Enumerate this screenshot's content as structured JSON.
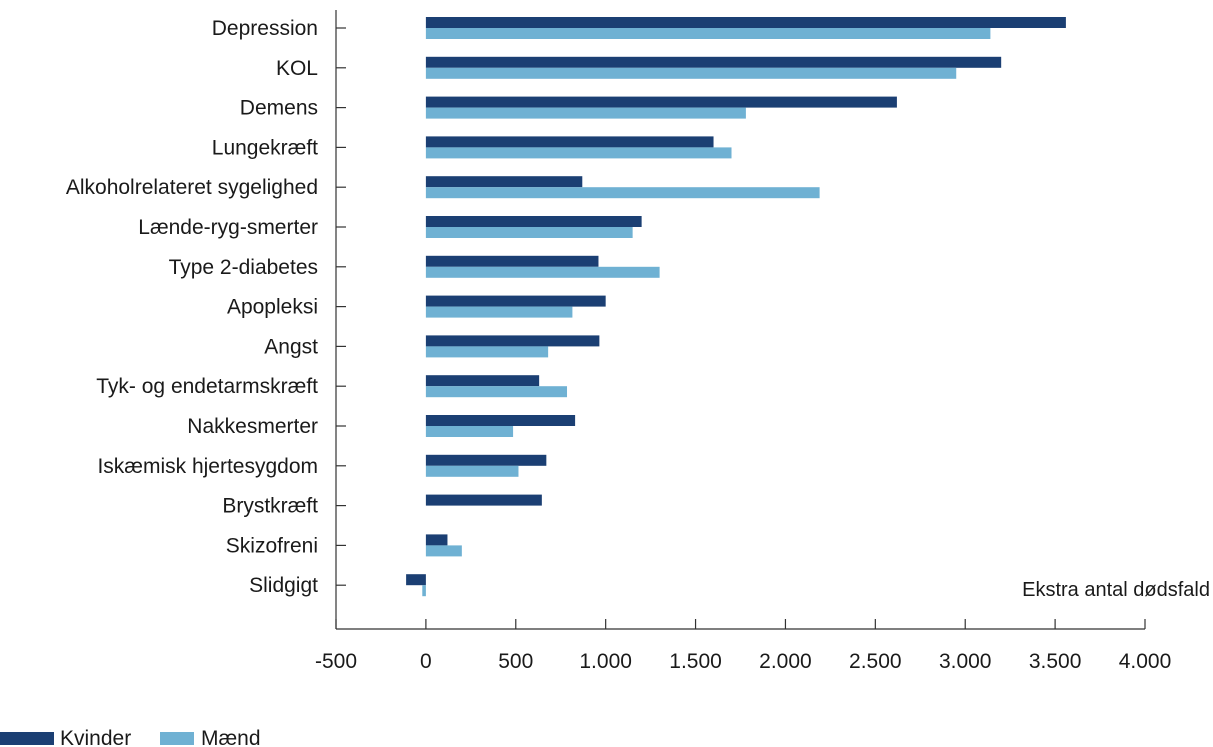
{
  "chart_data": {
    "type": "bar",
    "orientation": "horizontal",
    "categories": [
      "Depression",
      "KOL",
      "Demens",
      "Lungekræft",
      "Alkoholrelateret sygelighed",
      "Lænde-ryg-smerter",
      "Type 2-diabetes",
      "Apopleksi",
      "Angst",
      "Tyk- og endetarmskræft",
      "Nakkesmerter",
      "Iskæmisk hjertesygdom",
      "Brystkræft",
      "Skizofreni",
      "Slidgigt"
    ],
    "series": [
      {
        "name": "Kvinder",
        "color": "#1b3f73",
        "values": [
          3560,
          3200,
          2620,
          1600,
          870,
          1200,
          960,
          1000,
          965,
          630,
          830,
          670,
          645,
          120,
          -110
        ]
      },
      {
        "name": "Mænd",
        "color": "#6fb1d3",
        "values": [
          3140,
          2950,
          1780,
          1700,
          2190,
          1150,
          1300,
          815,
          680,
          785,
          485,
          515,
          0,
          200,
          -20
        ]
      }
    ],
    "xlim": [
      -500,
      4000
    ],
    "xticks": [
      -500,
      0,
      500,
      1000,
      1500,
      2000,
      2500,
      3000,
      3500,
      4000
    ],
    "xtick_labels": [
      "-500",
      "0",
      "500",
      "1.000",
      "1.500",
      "2.000",
      "2.500",
      "3.000",
      "3.500",
      "4.000"
    ],
    "annotation": "Ekstra antal dødsfald",
    "legend_position": "bottom-left",
    "grid": false
  }
}
